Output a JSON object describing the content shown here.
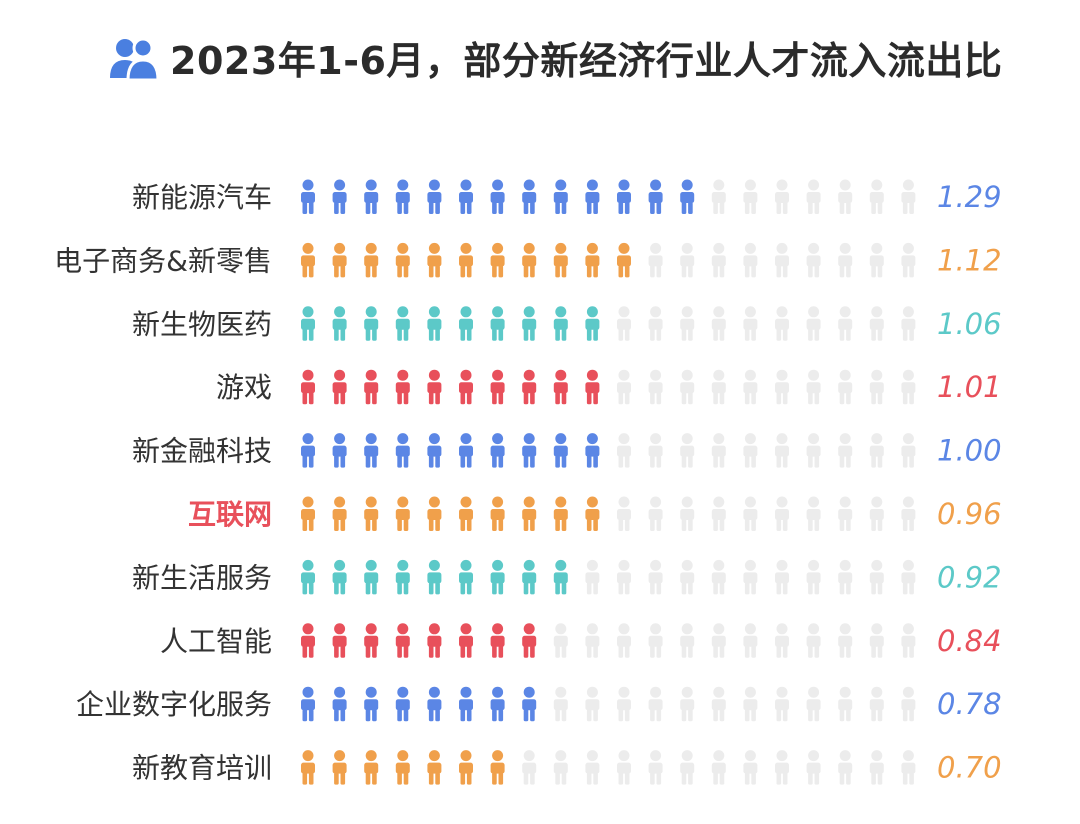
{
  "chart_data": {
    "type": "bar",
    "title": "2023年1-6月，部分新经济行业人才流入流出比",
    "categories": [
      "新能源汽车",
      "电子商务&新零售",
      "新生物医药",
      "游戏",
      "新金融科技",
      "互联网",
      "新生活服务",
      "人工智能",
      "企业数字化服务",
      "新教育培训"
    ],
    "values": [
      1.29,
      1.12,
      1.06,
      1.01,
      1.0,
      0.96,
      0.92,
      0.84,
      0.78,
      0.7
    ],
    "value_labels": [
      "1.29",
      "1.12",
      "1.06",
      "1.01",
      "1.00",
      "0.96",
      "0.92",
      "0.84",
      "0.78",
      "0.70"
    ],
    "icons_filled": [
      13,
      11,
      10,
      10,
      10,
      10,
      9,
      8,
      8,
      7
    ],
    "icons_total": 20,
    "highlighted_category": "互联网",
    "xlabel": "",
    "ylabel": ""
  },
  "icon": "people-group-icon",
  "colors": {
    "row_colors": [
      "#5b86e5",
      "#f0a04b",
      "#5cc9c8",
      "#e8505b",
      "#5b86e5",
      "#f0a04b",
      "#5cc9c8",
      "#e8505b",
      "#5b86e5",
      "#f0a04b"
    ],
    "empty_icon": "#ececec",
    "label": "#333333",
    "highlight_label": "#e8505b",
    "title": "#2b2b2b",
    "title_icon": "#4a7fe0"
  }
}
